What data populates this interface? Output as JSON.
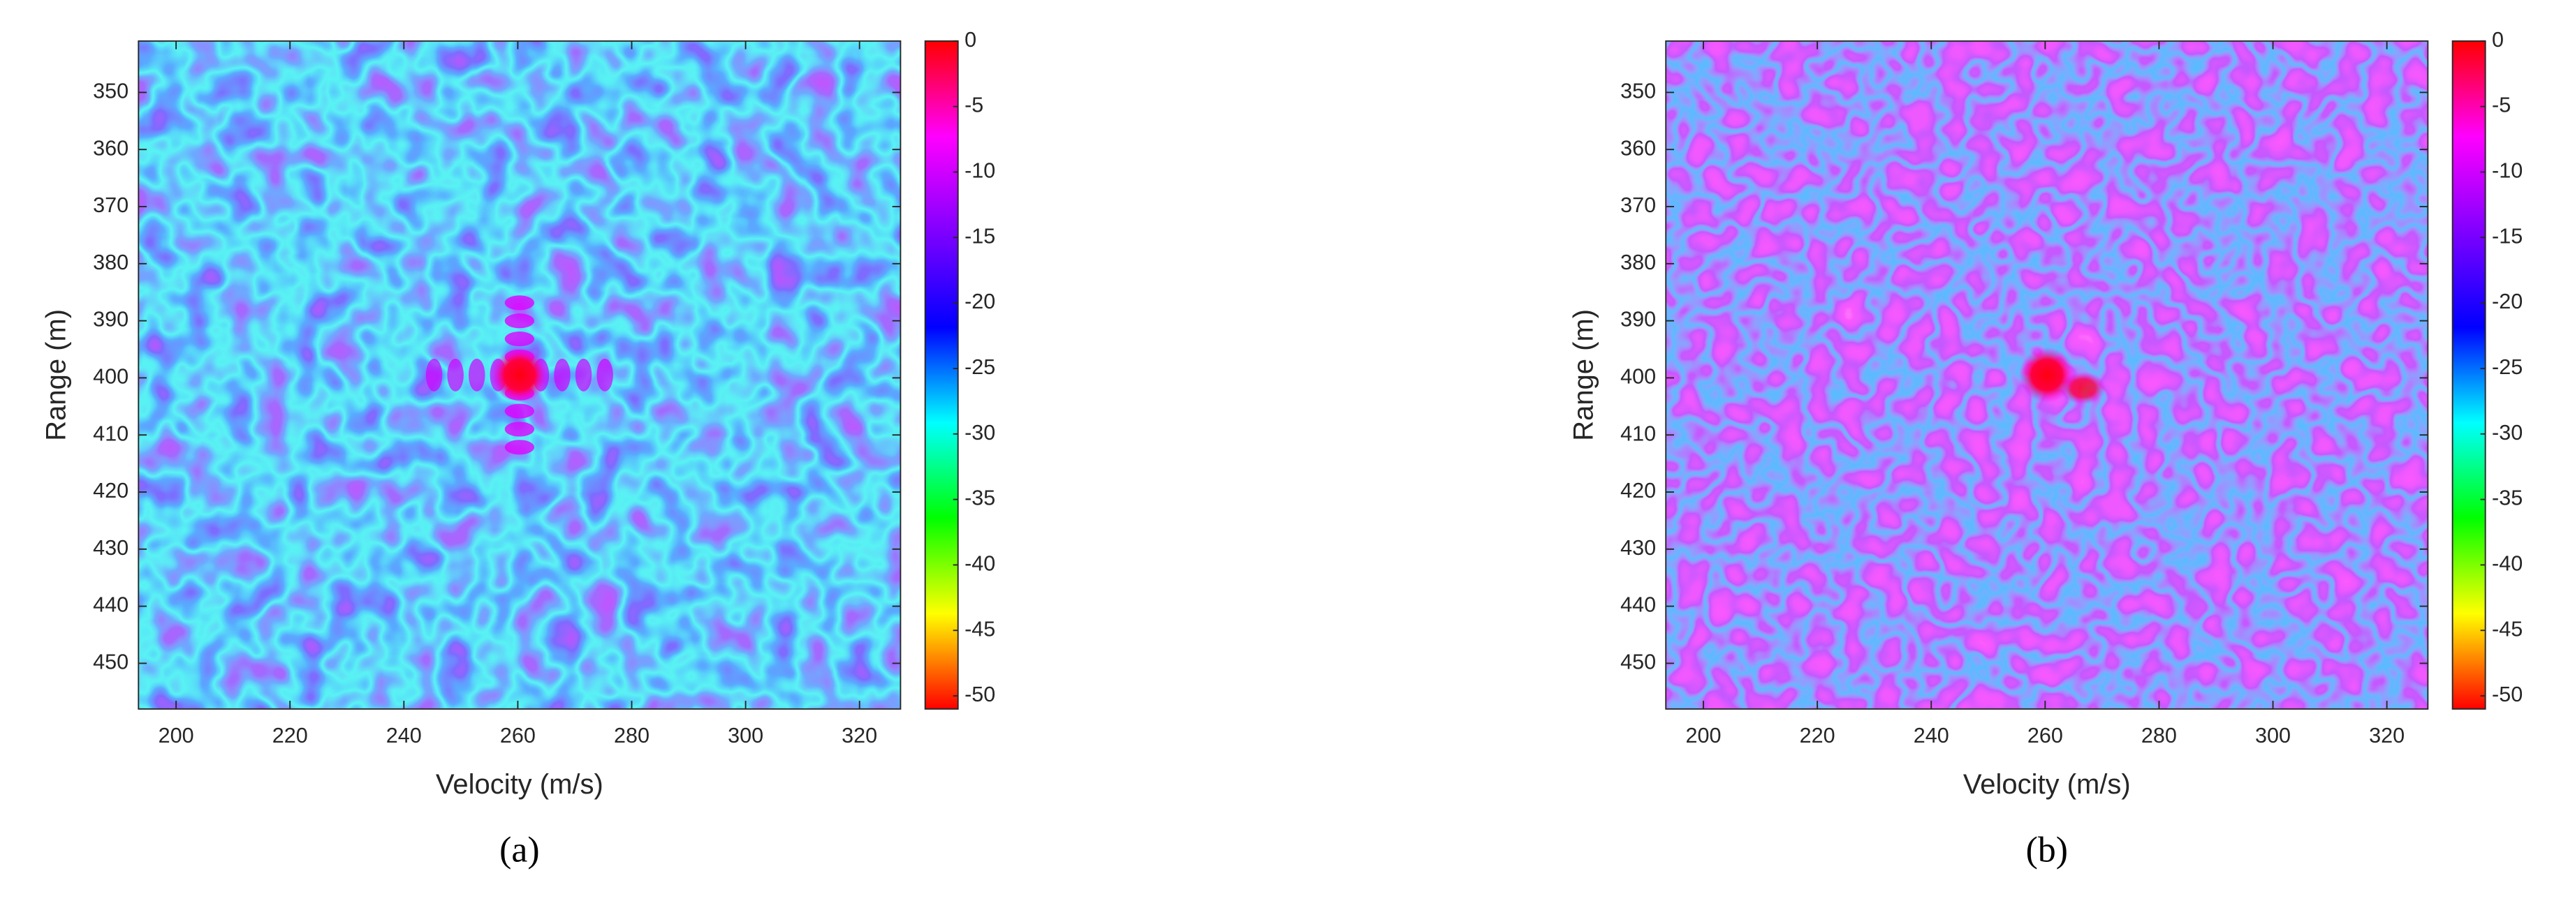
{
  "chart_data": [
    {
      "type": "heatmap",
      "panel_label": "(a)",
      "xlabel": "Velocity (m/s)",
      "ylabel": "Range (m)",
      "xlim": [
        193.4,
        327.2
      ],
      "xticks": [
        200,
        220,
        240,
        260,
        280,
        300,
        320
      ],
      "ylim": [
        341,
        458
      ],
      "yticks": [
        350,
        360,
        370,
        380,
        390,
        400,
        410,
        420,
        430,
        440,
        450
      ],
      "colorbar": {
        "clim": [
          -51,
          0
        ],
        "ticks": [
          0,
          -5,
          -10,
          -15,
          -20,
          -25,
          -30,
          -35,
          -40,
          -45,
          -50
        ],
        "colormap": [
          "#ff0000",
          "#ff00ff",
          "#7f00ff",
          "#0000ff",
          "#00ffff",
          "#00ff00",
          "#ffff00",
          "#ff0000"
        ]
      }
    },
    {
      "type": "heatmap",
      "panel_label": "(b)",
      "xlabel": "Velocity (m/s)",
      "ylabel": "Range (m)",
      "xlim": [
        193.4,
        327.2
      ],
      "xticks": [
        200,
        220,
        240,
        260,
        280,
        300,
        320
      ],
      "ylim": [
        341,
        458
      ],
      "yticks": [
        350,
        360,
        370,
        380,
        390,
        400,
        410,
        420,
        430,
        440,
        450
      ],
      "colorbar": {
        "clim": [
          -51,
          0
        ],
        "ticks": [
          0,
          -5,
          -10,
          -15,
          -20,
          -25,
          -30,
          -35,
          -40,
          -45,
          -50
        ],
        "colormap": [
          "#ff0000",
          "#ff00ff",
          "#7f00ff",
          "#0000ff",
          "#00ffff",
          "#00ff00",
          "#ffff00",
          "#ff0000"
        ]
      }
    }
  ]
}
